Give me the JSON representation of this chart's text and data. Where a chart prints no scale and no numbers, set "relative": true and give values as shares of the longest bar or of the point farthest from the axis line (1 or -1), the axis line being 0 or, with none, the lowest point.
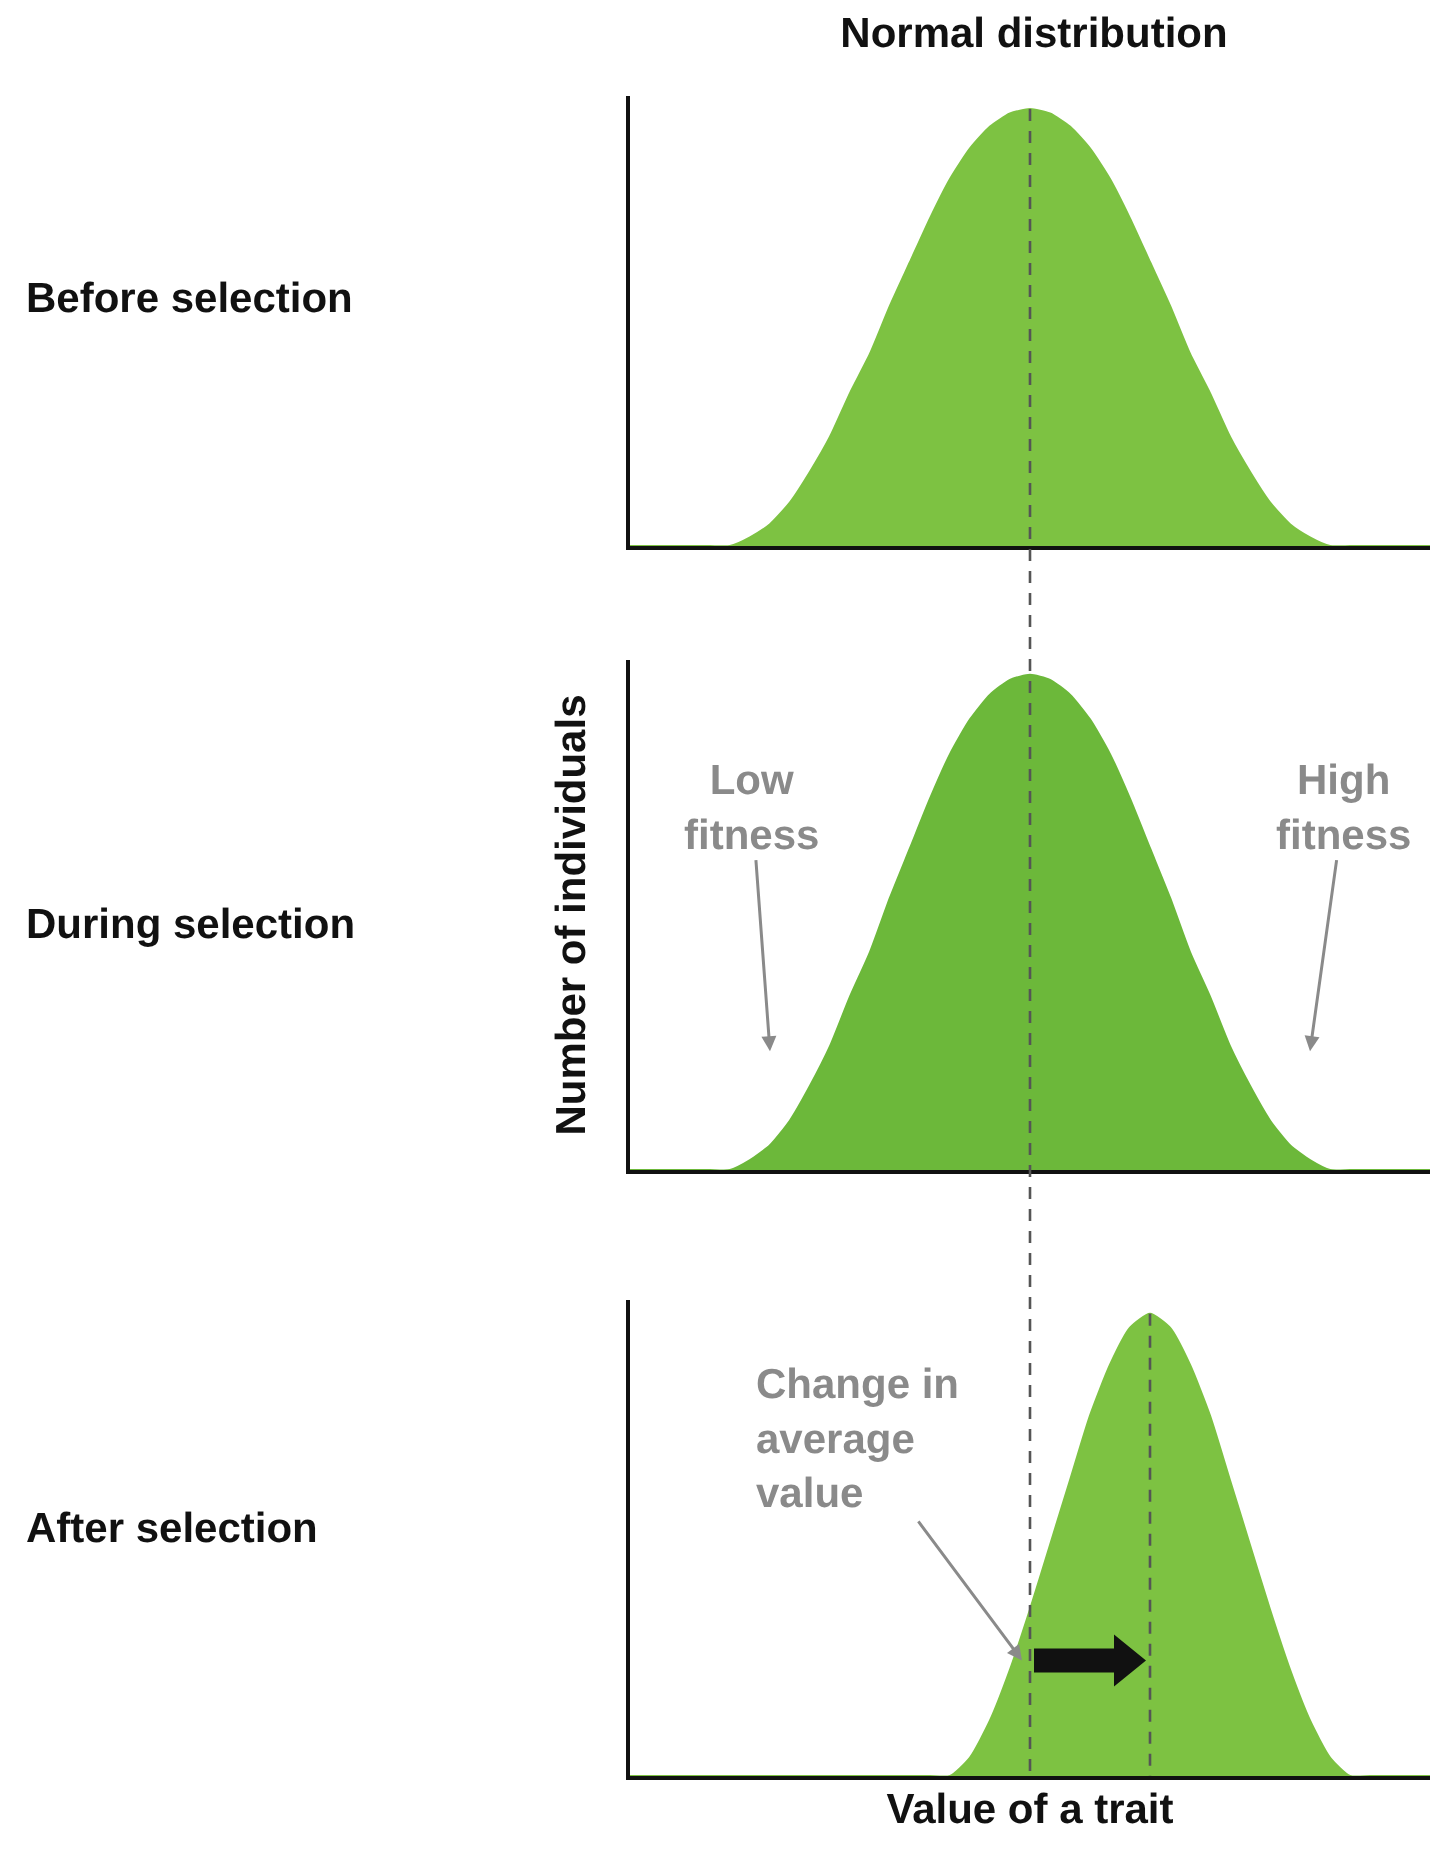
{
  "chart_data": [
    {
      "type": "area",
      "title": "Normal distribution",
      "relative": true,
      "categories": [
        null,
        null,
        null,
        null,
        null,
        null,
        null,
        null,
        null,
        null,
        null,
        null,
        null,
        null,
        null,
        null,
        null,
        null,
        null,
        null,
        null,
        null,
        null,
        null,
        null,
        null,
        null,
        null,
        null,
        null,
        null,
        null,
        null,
        null,
        null,
        null,
        null,
        null,
        null,
        null,
        null
      ],
      "values": [
        0,
        0,
        0,
        0,
        0,
        0,
        0.02,
        0.05,
        0.1,
        0.17,
        0.25,
        0.35,
        0.44,
        0.55,
        0.65,
        0.75,
        0.84,
        0.91,
        0.96,
        0.99,
        1,
        0.99,
        0.96,
        0.91,
        0.84,
        0.75,
        0.65,
        0.55,
        0.44,
        0.35,
        0.25,
        0.17,
        0.1,
        0.05,
        0.02,
        0,
        0,
        0,
        0,
        0,
        0
      ],
      "color": "#7dc242",
      "annotations": [
        "Before selection"
      ]
    },
    {
      "type": "area",
      "ylabel": "Number of individuals",
      "relative": true,
      "categories": [
        null,
        null,
        null,
        null,
        null,
        null,
        null,
        null,
        null,
        null,
        null,
        null,
        null,
        null,
        null,
        null,
        null,
        null,
        null,
        null,
        null,
        null,
        null,
        null,
        null,
        null,
        null,
        null,
        null,
        null,
        null,
        null,
        null,
        null,
        null,
        null,
        null,
        null,
        null,
        null,
        null
      ],
      "values": [
        0,
        0,
        0,
        0,
        0,
        0,
        0.02,
        0.05,
        0.1,
        0.17,
        0.25,
        0.35,
        0.44,
        0.55,
        0.65,
        0.75,
        0.84,
        0.91,
        0.96,
        0.99,
        1,
        0.99,
        0.96,
        0.91,
        0.84,
        0.75,
        0.65,
        0.55,
        0.44,
        0.35,
        0.25,
        0.17,
        0.1,
        0.05,
        0.02,
        0,
        0,
        0,
        0,
        0,
        0
      ],
      "color": "#6cb83a",
      "annotations": [
        "During selection",
        "Low fitness",
        "High fitness"
      ]
    },
    {
      "type": "area",
      "xlabel": "Value of a trait",
      "relative": true,
      "categories": [
        null,
        null,
        null,
        null,
        null,
        null,
        null,
        null,
        null,
        null,
        null,
        null,
        null,
        null,
        null,
        null,
        null,
        null,
        null,
        null,
        null,
        null,
        null,
        null,
        null,
        null,
        null,
        null,
        null,
        null,
        null,
        null,
        null,
        null,
        null,
        null,
        null,
        null,
        null,
        null,
        null
      ],
      "values": [
        0,
        0,
        0,
        0,
        0,
        0,
        0,
        0,
        0,
        0,
        0,
        0,
        0,
        0,
        0,
        0,
        0,
        0.04,
        0.12,
        0.23,
        0.36,
        0.5,
        0.64,
        0.78,
        0.89,
        0.97,
        1,
        0.97,
        0.89,
        0.78,
        0.64,
        0.5,
        0.36,
        0.23,
        0.12,
        0.04,
        0,
        0,
        0,
        0,
        0
      ],
      "color": "#7dc242",
      "annotations": [
        "After selection",
        "Change in average value"
      ]
    }
  ]
}
